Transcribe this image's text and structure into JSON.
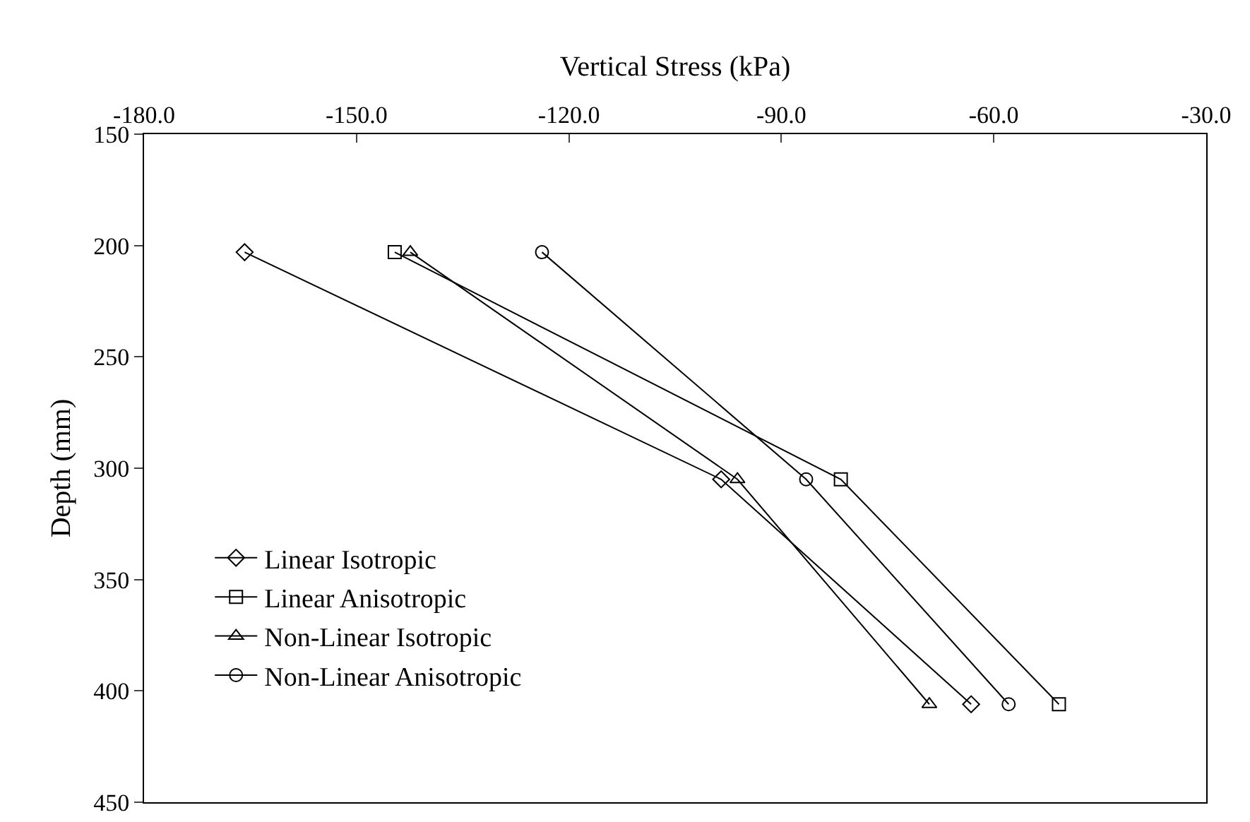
{
  "chart_data": {
    "type": "line",
    "xlabel": "Vertical Stress (kPa)",
    "ylabel": "Depth (mm)",
    "xlim": [
      -180,
      -30
    ],
    "xticks": [
      {
        "value": -180,
        "label": "-180.0"
      },
      {
        "value": -150,
        "label": "-150.0"
      },
      {
        "value": -120,
        "label": "-120.0"
      },
      {
        "value": -90,
        "label": "-90.0"
      },
      {
        "value": -60,
        "label": "-60.0"
      },
      {
        "value": -30,
        "label": "-30.0"
      }
    ],
    "ylim": [
      450,
      150
    ],
    "yticks": [
      150,
      200,
      250,
      300,
      350,
      400,
      450
    ],
    "grid": false,
    "legend": "bottom left",
    "series": [
      {
        "name": "Linear Isotropic",
        "color": "#000000",
        "marker": "diamond",
        "x": [
          -165.8,
          -98.5,
          -63.2
        ],
        "values": [
          203,
          305,
          406
        ]
      },
      {
        "name": "Linear Anisotropic",
        "color": "#000000",
        "marker": "square",
        "x": [
          -144.6,
          -81.6,
          -50.8
        ],
        "values": [
          203,
          305,
          406
        ]
      },
      {
        "name": "Non-Linear Isotropic",
        "color": "#000000",
        "marker": "triangle",
        "x": [
          -142.4,
          -96.2,
          -69.1
        ],
        "values": [
          203,
          305,
          406
        ]
      },
      {
        "name": "Non-Linear Anisotropic",
        "color": "#000000",
        "marker": "circle",
        "x": [
          -123.8,
          -86.5,
          -57.9
        ],
        "values": [
          203,
          305,
          406
        ]
      }
    ]
  }
}
